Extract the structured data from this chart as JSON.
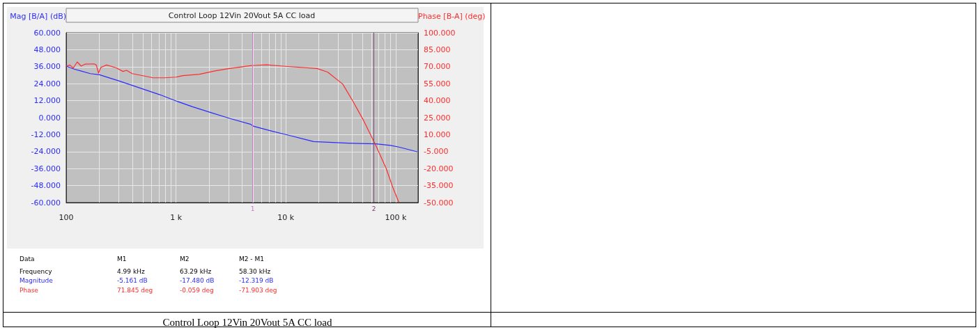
{
  "chart_data": {
    "type": "line",
    "title": "Control Loop 12Vin 20Vout 5A CC load",
    "ylabel": "Mag [B/A] (dB)",
    "y2label": "Phase [B-A] (deg)",
    "log": "x",
    "grid": true,
    "marker": "none",
    "line_style": "solid",
    "xlim": [
      100,
      160000
    ],
    "xticks": [
      {
        "value": 100,
        "label": "100"
      },
      {
        "value": 200,
        "label": null
      },
      {
        "value": 300,
        "label": null
      },
      {
        "value": 400,
        "label": null
      },
      {
        "value": 500,
        "label": null
      },
      {
        "value": 600,
        "label": null
      },
      {
        "value": 700,
        "label": null
      },
      {
        "value": 800,
        "label": null
      },
      {
        "value": 900,
        "label": null
      },
      {
        "value": 1000,
        "label": "1 k"
      },
      {
        "value": 2000,
        "label": null
      },
      {
        "value": 3000,
        "label": null
      },
      {
        "value": 4000,
        "label": null
      },
      {
        "value": 5000,
        "label": null
      },
      {
        "value": 6000,
        "label": null
      },
      {
        "value": 7000,
        "label": null
      },
      {
        "value": 8000,
        "label": null
      },
      {
        "value": 9000,
        "label": null
      },
      {
        "value": 10000,
        "label": "10 k"
      },
      {
        "value": 20000,
        "label": null
      },
      {
        "value": 30000,
        "label": null
      },
      {
        "value": 40000,
        "label": null
      },
      {
        "value": 50000,
        "label": null
      },
      {
        "value": 60000,
        "label": null
      },
      {
        "value": 70000,
        "label": null
      },
      {
        "value": 80000,
        "label": null
      },
      {
        "value": 90000,
        "label": null
      },
      {
        "value": 100000,
        "label": "100 k"
      }
    ],
    "ylim": [
      -60,
      60
    ],
    "yticks": [
      {
        "value": -60,
        "label": "-60.000"
      },
      {
        "value": -48,
        "label": "-48.000"
      },
      {
        "value": -36,
        "label": "-36.000"
      },
      {
        "value": -24,
        "label": "-24.000"
      },
      {
        "value": -12,
        "label": "-12.000"
      },
      {
        "value": 0,
        "label": "0.000"
      },
      {
        "value": 12,
        "label": "12.000"
      },
      {
        "value": 24,
        "label": "24.000"
      },
      {
        "value": 36,
        "label": "36.000"
      },
      {
        "value": 48,
        "label": "48.000"
      },
      {
        "value": 60,
        "label": "60.000"
      }
    ],
    "y2lim": [
      -50,
      100
    ],
    "y2ticks": [
      {
        "value": -50,
        "label": "-50.000"
      },
      {
        "value": -35,
        "label": "-35.000"
      },
      {
        "value": -20,
        "label": "-20.000"
      },
      {
        "value": -5,
        "label": "-5.000"
      },
      {
        "value": 10,
        "label": "10.000"
      },
      {
        "value": 25,
        "label": "25.000"
      },
      {
        "value": 40,
        "label": "40.000"
      },
      {
        "value": 55,
        "label": "55.000"
      },
      {
        "value": 70,
        "label": "70.000"
      },
      {
        "value": 85,
        "label": "85.000"
      },
      {
        "value": 100,
        "label": "100.000"
      }
    ],
    "series": [
      {
        "color": "#2b2bff",
        "x": [
          100,
          118,
          134,
          166,
          201,
          233,
          298,
          382,
          511,
          714,
          1000,
          1416,
          2070,
          3070,
          4740,
          5100,
          7360,
          10470,
          15500,
          17900,
          37000,
          66000,
          90000,
          109000,
          159000
        ],
        "values": [
          36.4,
          34.3,
          33.1,
          31.1,
          30.3,
          28.7,
          26.1,
          23.3,
          20.0,
          16.2,
          11.8,
          7.7,
          3.6,
          -0.5,
          -4.6,
          -6.1,
          -9.4,
          -12.3,
          -15.7,
          -16.9,
          -18,
          -18.5,
          -19.6,
          -20.9,
          -24.2
        ]
      },
      {
        "color": "#ff2b2b",
        "axis": "y2",
        "x": [
          100,
          108,
          116,
          126,
          137,
          148,
          179,
          188,
          197,
          207,
          233,
          284,
          329,
          354,
          399,
          509,
          617,
          787,
          1000,
          1157,
          1637,
          2300,
          3070,
          4740,
          5100,
          6700,
          9450,
          19200,
          24000,
          33000,
          41000,
          51000,
          66000,
          82000,
          94000,
          107000
        ],
        "values": [
          70.5,
          71.5,
          68.8,
          74.2,
          70.5,
          72.2,
          72.5,
          71.5,
          64.3,
          69.4,
          71.5,
          69.1,
          65.8,
          66.8,
          63.9,
          61.9,
          60.2,
          60.2,
          60.8,
          62.1,
          63.3,
          66.4,
          68.4,
          70.9,
          71.1,
          71.7,
          70.5,
          68.4,
          65.3,
          54.6,
          39.1,
          22.6,
          0.4,
          -19.9,
          -36.3,
          -49.8
        ]
      }
    ],
    "ref_lines": [
      {
        "axis": "x",
        "value": 4990,
        "color": "#cc77cc"
      },
      {
        "axis": "x",
        "value": 63290,
        "color": "#774477"
      }
    ],
    "annotations": [
      {
        "text": "1",
        "x": 4990,
        "y": -60
      },
      {
        "text": "2",
        "x": 63290,
        "y": -60
      },
      "Data",
      "M1",
      "M2",
      "M2 - M1",
      "Frequency",
      "4.99 kHz",
      "63.29 kHz",
      "58.30 kHz",
      "Magnitude",
      "-5.161 dB",
      "-17.480 dB",
      "-12.319 dB",
      "Phase",
      "71.845 deg",
      "-0.059 deg",
      "-71.903 deg",
      "Control Loop 12Vin 20Vout 5A CC load"
    ]
  }
}
